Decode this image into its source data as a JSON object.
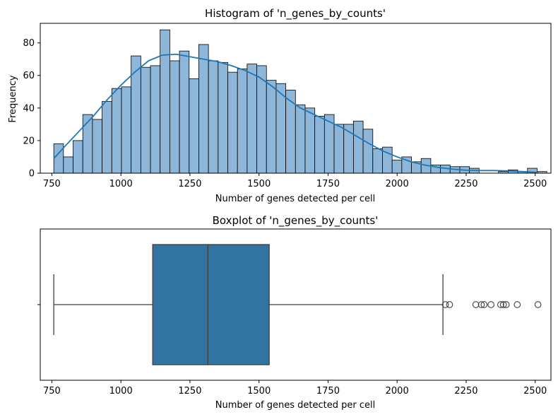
{
  "chart_data": [
    {
      "type": "bar",
      "title": "Histogram of 'n_genes_by_counts'",
      "xlabel": "Number of genes detected per cell",
      "ylabel": "Frequency",
      "xlim": [
        708,
        2557
      ],
      "ylim": [
        0,
        92
      ],
      "xticks": [
        "750",
        "1000",
        "1250",
        "1500",
        "1750",
        "2000",
        "2250",
        "2500"
      ],
      "yticks": [
        "0",
        "20",
        "40",
        "60",
        "80"
      ],
      "bin_start": 757,
      "bin_width": 35,
      "values": [
        18,
        10,
        20,
        36,
        33,
        44,
        52,
        53,
        72,
        65,
        66,
        88,
        69,
        75,
        58,
        79,
        69,
        68,
        62,
        64,
        67,
        66,
        57,
        55,
        51,
        42,
        40,
        35,
        36,
        30,
        30,
        32,
        27,
        15,
        16,
        8,
        10,
        7,
        9,
        5,
        5,
        4,
        4,
        3,
        0,
        0,
        1,
        2,
        1,
        3,
        1
      ],
      "bar_color": "#8db6d8",
      "kde_color": "#1f77b4",
      "kde": {
        "x": [
          757,
          800,
          850,
          900,
          950,
          1000,
          1050,
          1100,
          1150,
          1200,
          1250,
          1300,
          1350,
          1400,
          1450,
          1500,
          1550,
          1600,
          1650,
          1700,
          1750,
          1800,
          1850,
          1900,
          1950,
          2000,
          2050,
          2100,
          2150,
          2200,
          2250,
          2300,
          2350,
          2400,
          2450,
          2510
        ],
        "y": [
          9,
          17,
          26,
          35,
          45,
          54,
          62,
          69,
          72.5,
          73,
          71.5,
          70,
          68.5,
          66,
          63,
          59,
          53,
          46,
          40,
          36,
          32,
          28,
          23,
          18,
          13.5,
          10,
          7,
          5,
          3.5,
          2.5,
          1.8,
          1.6,
          1.6,
          1.4,
          1.0,
          0.5
        ]
      }
    },
    {
      "type": "box",
      "title": "Boxplot of 'n_genes_by_counts'",
      "xlabel": "Number of genes detected per cell",
      "xlim": [
        708,
        2557
      ],
      "xticks": [
        "750",
        "1000",
        "1250",
        "1500",
        "1750",
        "2000",
        "2250",
        "2500"
      ],
      "whisker_low": 757,
      "q1": 1115,
      "median": 1315,
      "q3": 1537,
      "whisker_high": 2166,
      "outliers": [
        2175,
        2190,
        2285,
        2305,
        2315,
        2340,
        2375,
        2385,
        2395,
        2435,
        2510
      ],
      "box_color": "#3274a1"
    }
  ]
}
